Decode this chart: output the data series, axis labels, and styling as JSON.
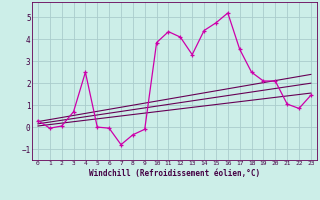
{
  "xlabel": "Windchill (Refroidissement éolien,°C)",
  "xlim": [
    -0.5,
    23.5
  ],
  "ylim": [
    -1.5,
    5.7
  ],
  "yticks": [
    -1,
    0,
    1,
    2,
    3,
    4,
    5
  ],
  "xticks": [
    0,
    1,
    2,
    3,
    4,
    5,
    6,
    7,
    8,
    9,
    10,
    11,
    12,
    13,
    14,
    15,
    16,
    17,
    18,
    19,
    20,
    21,
    22,
    23
  ],
  "background_color": "#cceee8",
  "grid_color": "#aacccc",
  "line_color": "#cc00aa",
  "line_color2": "#660055",
  "main_series_x": [
    0,
    1,
    2,
    3,
    4,
    5,
    6,
    7,
    8,
    9,
    10,
    11,
    12,
    13,
    14,
    15,
    16,
    17,
    18,
    19,
    20,
    21,
    22,
    23
  ],
  "main_series_y": [
    0.3,
    -0.05,
    0.05,
    0.7,
    2.5,
    0.0,
    -0.05,
    -0.8,
    -0.35,
    -0.1,
    3.85,
    4.35,
    4.1,
    3.3,
    4.4,
    4.75,
    5.2,
    3.55,
    2.5,
    2.1,
    2.1,
    1.05,
    0.85,
    1.45
  ],
  "trend1_x": [
    0,
    23
  ],
  "trend1_y": [
    0.05,
    1.55
  ],
  "trend2_x": [
    0,
    23
  ],
  "trend2_y": [
    0.15,
    2.0
  ],
  "trend3_x": [
    0,
    23
  ],
  "trend3_y": [
    0.25,
    2.4
  ]
}
